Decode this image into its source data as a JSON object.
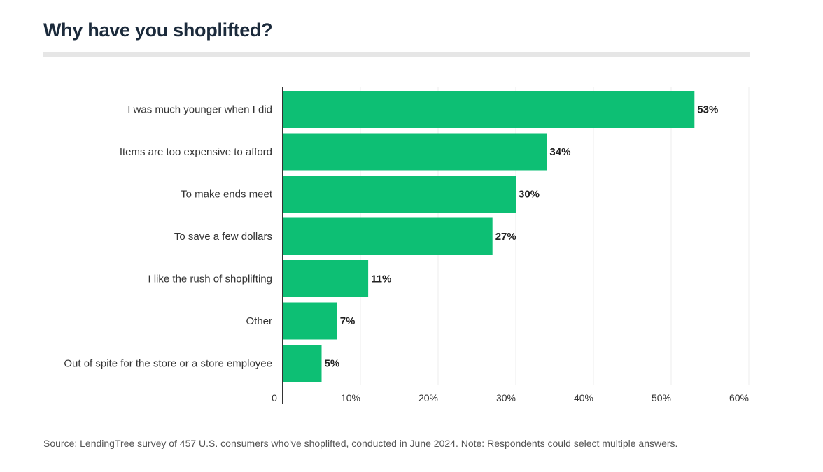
{
  "chart_title": "Why have you shoplifted?",
  "source_note": "Source: LendingTree survey of 457 U.S. consumers who've shoplifted, conducted in June 2024. Note: Respondents could select multiple answers.",
  "colors": {
    "bar": "#0dbf74",
    "title": "#1b2a3b",
    "rule": "#e6e6e6",
    "grid": "#ececec",
    "axis": "#333333"
  },
  "chart_data": {
    "type": "bar",
    "orientation": "horizontal",
    "title": "Why have you shoplifted?",
    "categories": [
      "I was much younger when I did",
      "Items are too expensive to afford",
      "To make ends meet",
      "To save a few dollars",
      "I like the rush of shoplifting",
      "Other",
      "Out of spite for the store or a store employee"
    ],
    "values": [
      53,
      34,
      30,
      27,
      11,
      7,
      5
    ],
    "value_labels": [
      "53%",
      "34%",
      "30%",
      "27%",
      "11%",
      "7%",
      "5%"
    ],
    "xlim": [
      0,
      60
    ],
    "x_ticks": [
      0,
      10,
      20,
      30,
      40,
      50,
      60
    ],
    "x_tick_labels": [
      "0",
      "10%",
      "20%",
      "30%",
      "40%",
      "50%",
      "60%"
    ],
    "grid": true,
    "xlabel": "",
    "ylabel": ""
  }
}
